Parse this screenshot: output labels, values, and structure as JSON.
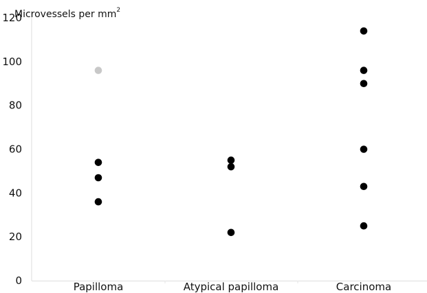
{
  "chart_data": {
    "type": "scatter",
    "title": "",
    "ylabel": "Microvessels per mm",
    "ylabel_superscript": "2",
    "xlabel": "",
    "ylim": [
      0,
      120
    ],
    "yticks": [
      0,
      20,
      40,
      60,
      80,
      100,
      120
    ],
    "ytick_labels": [
      "0",
      "20",
      "40",
      "60",
      "80",
      "100",
      "120"
    ],
    "grid": false,
    "categories": [
      "Papilloma",
      "Atypical papilloma",
      "Carcinoma"
    ],
    "points": [
      {
        "category": "Papilloma",
        "y": 96,
        "color": "#c8c8c8"
      },
      {
        "category": "Papilloma",
        "y": 54,
        "color": "#000000"
      },
      {
        "category": "Papilloma",
        "y": 47,
        "color": "#000000"
      },
      {
        "category": "Papilloma",
        "y": 36,
        "color": "#000000"
      },
      {
        "category": "Atypical papilloma",
        "y": 55,
        "color": "#000000"
      },
      {
        "category": "Atypical papilloma",
        "y": 52,
        "color": "#000000"
      },
      {
        "category": "Atypical papilloma",
        "y": 22,
        "color": "#000000"
      },
      {
        "category": "Carcinoma",
        "y": 114,
        "color": "#000000"
      },
      {
        "category": "Carcinoma",
        "y": 96,
        "color": "#000000"
      },
      {
        "category": "Carcinoma",
        "y": 90,
        "color": "#000000"
      },
      {
        "category": "Carcinoma",
        "y": 60,
        "color": "#000000"
      },
      {
        "category": "Carcinoma",
        "y": 43,
        "color": "#000000"
      },
      {
        "category": "Carcinoma",
        "y": 25,
        "color": "#000000"
      }
    ]
  }
}
